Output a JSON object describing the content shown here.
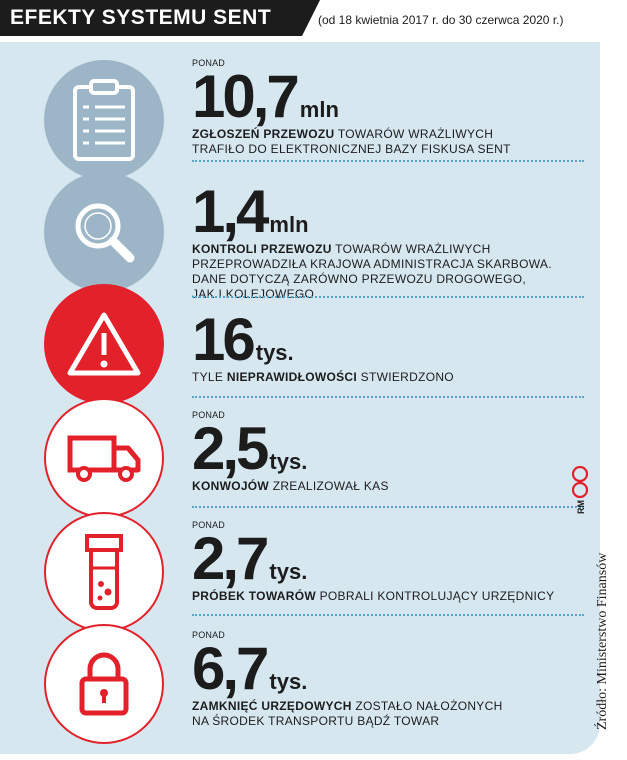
{
  "header": {
    "title": "EFEKTY SYSTEMU SENT",
    "subtitle": "(od 18 kwietnia 2017 r. do 30 czerwca 2020 r.)"
  },
  "colors": {
    "panel": "#d6e7f0",
    "gray_circle": "#9db6c7",
    "red": "#e3212b",
    "dark": "#1c1c1c",
    "dots": "#5aa3c7"
  },
  "items": [
    {
      "icon": "clipboard-icon",
      "prefix": "PONAD",
      "value": "10,7",
      "unit": "mln",
      "bold": "ZGŁOSZEŃ PRZEWOZU",
      "rest": " TOWARÓW WRAŻLIWYCH",
      "line2": "TRAFIŁO DO ELEKTRONICZNEJ BAZY FISKUSA SENT"
    },
    {
      "icon": "magnifier-icon",
      "prefix": "",
      "value": "1,4",
      "unit": "mln",
      "bold": "KONTROLI PRZEWOZU",
      "rest": " TOWARÓW WRAŻLIWYCH",
      "line2": "PRZEPROWADZIŁA KRAJOWA ADMINISTRACJA SKARBOWA.",
      "line3": "DANE DOTYCZĄ ZARÓWNO PRZEWOZU DROGOWEGO,",
      "line4": "JAK I KOLEJOWEGO"
    },
    {
      "icon": "warning-icon",
      "prefix": "",
      "value": "16",
      "unit": "tys.",
      "pre": "TYLE ",
      "bold": "NIEPRAWIDŁOWOŚCI",
      "rest": " STWIERDZONO"
    },
    {
      "icon": "truck-icon",
      "prefix": "PONAD",
      "value": "2,5",
      "unit": "tys.",
      "bold": "KONWOJÓW",
      "rest": " ZREALIZOWAŁ KAS"
    },
    {
      "icon": "sample-tube-icon",
      "prefix": "PONAD",
      "value": "2,7",
      "unit": "tys.",
      "bold": "PRÓBEK TOWARÓW",
      "rest": " POBRALI KONTROLUJĄCY URZĘDNICY"
    },
    {
      "icon": "padlock-icon",
      "prefix": "PONAD",
      "value": "6,7",
      "unit": "tys.",
      "bold": "ZAMKNIĘĆ URZĘDOWYCH",
      "rest": " ZOSTAŁO NAŁOŻONYCH",
      "line2": "NA ŚRODEK TRANSPORTU BĄDŹ TOWAR"
    }
  ],
  "source": "Źródło: Ministerstwo Finansów",
  "credit": "RM"
}
